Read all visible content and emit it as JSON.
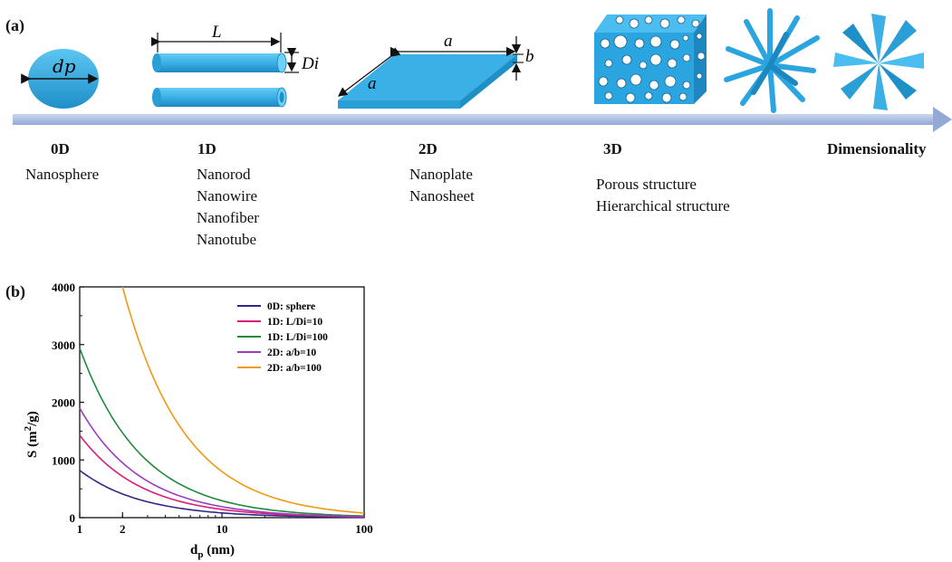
{
  "panel_a": {
    "label": "(a)",
    "axis_label": "Dimensionality",
    "categories": [
      {
        "dim": "0D",
        "items": [
          "Nanosphere"
        ]
      },
      {
        "dim": "1D",
        "items": [
          "Nanorod",
          "Nanowire",
          "Nanofiber",
          "Nanotube"
        ]
      },
      {
        "dim": "2D",
        "items": [
          "Nanoplate",
          "Nanosheet"
        ]
      },
      {
        "dim": "3D",
        "items": [
          "Porous structure",
          "Hierarchical structure"
        ]
      }
    ],
    "annotations": {
      "sphere_diameter": "dp",
      "rod_length": "L",
      "rod_diameter": "Di",
      "plate_side_top": "a",
      "plate_side_left": "a",
      "plate_thickness": "b"
    },
    "colors": {
      "shape_fill": "#3ab0e6",
      "shape_dark": "#1f8fc8",
      "arrow": "#aebee0"
    }
  },
  "panel_b": {
    "label": "(b)",
    "chart_data": {
      "type": "line",
      "xlabel": "dp (nm)",
      "ylabel": "S (m2/g)",
      "xscale": "log",
      "xlim": [
        1,
        100
      ],
      "ylim": [
        0,
        4000
      ],
      "xticks": [
        1,
        2,
        10,
        100
      ],
      "yticks": [
        0,
        1000,
        2000,
        3000,
        4000
      ],
      "legend_position": "top-right",
      "series": [
        {
          "name": "0D: sphere",
          "color": "#2d2a84",
          "x": [
            1,
            2,
            3,
            5,
            10,
            20,
            50,
            100
          ],
          "y": [
            820,
            410,
            275,
            165,
            82,
            41,
            17,
            8
          ]
        },
        {
          "name": "1D: L/Di=10",
          "color": "#d6207a",
          "x": [
            1,
            2,
            3,
            5,
            10,
            20,
            50,
            100
          ],
          "y": [
            1430,
            715,
            477,
            286,
            143,
            72,
            29,
            14
          ]
        },
        {
          "name": "1D: L/Di=100",
          "color": "#1f8a3a",
          "x": [
            1,
            2,
            3,
            5,
            10,
            20,
            50,
            100
          ],
          "y": [
            2940,
            1470,
            980,
            588,
            294,
            147,
            59,
            29
          ]
        },
        {
          "name": "2D: a/b=10",
          "color": "#9b3dbd",
          "x": [
            1,
            2,
            3,
            5,
            10,
            20,
            50,
            100
          ],
          "y": [
            1900,
            950,
            633,
            380,
            190,
            95,
            38,
            19
          ]
        },
        {
          "name": "2D: a/b=100",
          "color": "#f09a13",
          "x": [
            2,
            3,
            5,
            10,
            20,
            50,
            100
          ],
          "y": [
            4000,
            2667,
            1600,
            800,
            400,
            160,
            80
          ]
        }
      ]
    }
  }
}
